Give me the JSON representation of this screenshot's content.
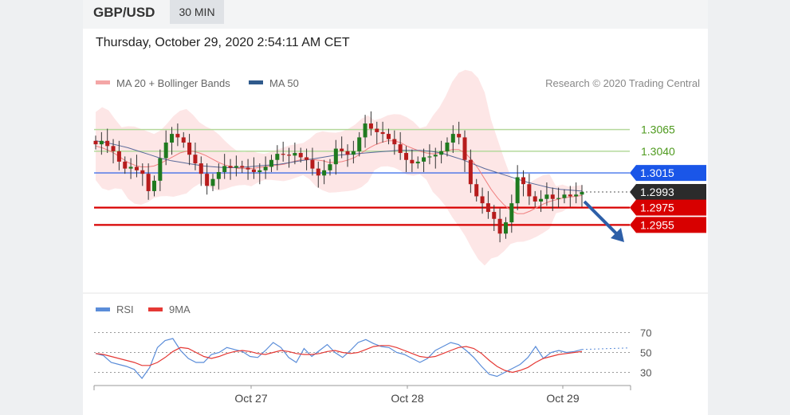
{
  "header": {
    "symbol": "GBP/USD",
    "timeframe": "30 MIN",
    "datetime": "Thursday, October 29, 2020 2:54:11 AM CET"
  },
  "legend": {
    "ma20": "MA 20 + Bollinger Bands",
    "ma50": "MA 50",
    "credit": "Research © 2020 Trading Central"
  },
  "rsi_legend": {
    "rsi": "RSI",
    "ma9": "9MA"
  },
  "colors": {
    "up": "#1f7a1f",
    "down": "#b71c1c",
    "band": "#fde3e3",
    "ma20": "#f08080",
    "ma50": "#5a6a9a",
    "resistance": "#b5d99c",
    "pivot": "#1a56e8",
    "support": "#d80000",
    "current": "#2b2b2b",
    "arrow": "#2d5fa8",
    "rsi": "#5b8dd9",
    "ma9": "#e53935"
  },
  "chart_data": [
    {
      "type": "candlestick",
      "title": "GBP/USD",
      "timeframe": "30 MIN",
      "ylim": [
        1.288,
        1.3095
      ],
      "x_ticks": [
        "Oct 27",
        "Oct 28",
        "Oct 29"
      ],
      "levels": [
        {
          "value": 1.3065,
          "label": "1.3065",
          "kind": "resistance"
        },
        {
          "value": 1.304,
          "label": "1.3040",
          "kind": "resistance"
        },
        {
          "value": 1.3015,
          "label": "1.3015",
          "kind": "pivot"
        },
        {
          "value": 1.2993,
          "label": "1.2993",
          "kind": "current"
        },
        {
          "value": 1.2975,
          "label": "1.2975",
          "kind": "support"
        },
        {
          "value": 1.2955,
          "label": "1.2955",
          "kind": "support"
        }
      ],
      "close_series": [
        1.3048,
        1.3052,
        1.3046,
        1.304,
        1.3028,
        1.302,
        1.3022,
        1.3018,
        1.3014,
        1.2994,
        1.3006,
        1.3032,
        1.305,
        1.306,
        1.3056,
        1.305,
        1.3036,
        1.3026,
        1.3014,
        1.3,
        1.3008,
        1.3016,
        1.3023,
        1.3021,
        1.3023,
        1.3021,
        1.3019,
        1.3016,
        1.3018,
        1.3022,
        1.303,
        1.3037,
        1.3036,
        1.3035,
        1.3038,
        1.3033,
        1.303,
        1.302,
        1.3012,
        1.3018,
        1.3025,
        1.3043,
        1.304,
        1.3036,
        1.304,
        1.3056,
        1.3072,
        1.3066,
        1.3062,
        1.306,
        1.3054,
        1.3048,
        1.3038,
        1.303,
        1.3026,
        1.3028,
        1.3033,
        1.3034,
        1.3036,
        1.304,
        1.305,
        1.306,
        1.3056,
        1.303,
        1.3002,
        1.2988,
        1.298,
        1.297,
        1.2962,
        1.2945,
        1.2958,
        1.298,
        1.301,
        1.3002,
        1.2988,
        1.2982,
        1.2985,
        1.299,
        1.2985,
        1.2986,
        1.299,
        1.2988,
        1.299,
        1.2993
      ],
      "ma20_series": [
        1.3046,
        1.3044,
        1.3041,
        1.3037,
        1.3032,
        1.3027,
        1.3024,
        1.3022,
        1.3022,
        1.3023,
        1.3026,
        1.303,
        1.3034,
        1.3038,
        1.304,
        1.304,
        1.3038,
        1.3035,
        1.3031,
        1.3027,
        1.3024,
        1.3022,
        1.302,
        1.302,
        1.302,
        1.3021,
        1.3022,
        1.3023,
        1.3024,
        1.3025,
        1.3027,
        1.3029,
        1.3031,
        1.3031,
        1.303,
        1.3029,
        1.3027,
        1.3027,
        1.3028,
        1.303,
        1.3033,
        1.3038,
        1.3043,
        1.3047,
        1.305,
        1.3052,
        1.3052,
        1.305,
        1.3046,
        1.3043,
        1.304,
        1.3038,
        1.3037,
        1.3038,
        1.304,
        1.3042,
        1.3042,
        1.3038,
        1.303,
        1.302,
        1.3008,
        1.2996,
        1.2986,
        1.2978,
        1.2972,
        1.2968,
        1.2968,
        1.2971,
        1.2975,
        1.2979,
        1.2982,
        1.2984,
        1.2986,
        1.2987,
        1.2988,
        1.2989
      ],
      "ma50_series": [
        1.3052,
        1.305,
        1.3047,
        1.3044,
        1.304,
        1.3036,
        1.3032,
        1.3029,
        1.3027,
        1.3025,
        1.3023,
        1.3022,
        1.3021,
        1.3021,
        1.3022,
        1.3023,
        1.3024,
        1.3025,
        1.3027,
        1.3029,
        1.3031,
        1.3033,
        1.3035,
        1.3036,
        1.3037,
        1.3038,
        1.3039,
        1.304,
        1.3041,
        1.3041,
        1.3041,
        1.304,
        1.3038,
        1.3034,
        1.303,
        1.3025,
        1.302,
        1.3016,
        1.3012,
        1.3008,
        1.3004,
        1.3001,
        1.2998,
        1.2996,
        1.2995,
        1.2994
      ]
    },
    {
      "type": "line",
      "title": "RSI",
      "ylim": [
        20,
        80
      ],
      "y_ticks": [
        "70",
        "50",
        "30"
      ],
      "series": [
        {
          "name": "RSI",
          "values": [
            49,
            47,
            40,
            38,
            36,
            33,
            24,
            35,
            55,
            62,
            64,
            52,
            44,
            40,
            40,
            48,
            50,
            55,
            53,
            51,
            46,
            45,
            52,
            60,
            55,
            45,
            40,
            54,
            46,
            52,
            58,
            50,
            45,
            52,
            60,
            63,
            59,
            56,
            55,
            50,
            48,
            44,
            40,
            44,
            52,
            56,
            60,
            58,
            52,
            45,
            36,
            28,
            26,
            30,
            34,
            38,
            45,
            56,
            44,
            50,
            52,
            50,
            51,
            53
          ]
        },
        {
          "name": "9MA",
          "values": [
            49,
            48,
            46,
            44,
            42,
            40,
            37,
            37,
            40,
            45,
            51,
            55,
            54,
            50,
            46,
            44,
            46,
            49,
            51,
            52,
            51,
            49,
            48,
            50,
            52,
            51,
            49,
            48,
            48,
            49,
            51,
            52,
            50,
            49,
            50,
            53,
            56,
            57,
            57,
            55,
            52,
            49,
            46,
            45,
            46,
            49,
            52,
            55,
            56,
            54,
            49,
            42,
            36,
            32,
            30,
            32,
            35,
            40,
            44,
            46,
            48,
            49,
            50,
            51
          ]
        }
      ]
    }
  ]
}
